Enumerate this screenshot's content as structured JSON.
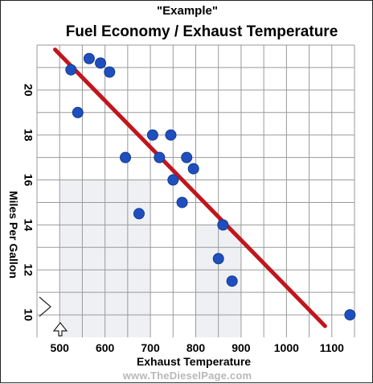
{
  "subtitle": "\"Example\"",
  "title": "Fuel Economy / Exhaust Temperature",
  "watermark": "www.TheDieselPage.com",
  "colors": {
    "grid": "#9a9a9a",
    "shade": "#eef0f4",
    "point": "#1f4fbf",
    "point_edge": "#153a8f",
    "trend": "#c0161c"
  },
  "chart_data": {
    "type": "scatter",
    "title": "Fuel Economy / Exhaust Temperature",
    "xlabel": "Exhaust Temperature",
    "ylabel": "Miles Per Gallon",
    "xlim": [
      450,
      1150
    ],
    "ylim": [
      9,
      22
    ],
    "xticks": [
      500,
      600,
      700,
      800,
      900,
      1000,
      1100
    ],
    "yticks": [
      10,
      12,
      14,
      16,
      18,
      20
    ],
    "grid": true,
    "points": [
      {
        "x": 525,
        "y": 20.9
      },
      {
        "x": 540,
        "y": 19.0
      },
      {
        "x": 565,
        "y": 21.4
      },
      {
        "x": 590,
        "y": 21.2
      },
      {
        "x": 610,
        "y": 20.8
      },
      {
        "x": 645,
        "y": 17.0
      },
      {
        "x": 675,
        "y": 14.5
      },
      {
        "x": 705,
        "y": 18.0
      },
      {
        "x": 720,
        "y": 17.0
      },
      {
        "x": 745,
        "y": 18.0
      },
      {
        "x": 750,
        "y": 16.0
      },
      {
        "x": 770,
        "y": 15.0
      },
      {
        "x": 780,
        "y": 17.0
      },
      {
        "x": 795,
        "y": 16.5
      },
      {
        "x": 850,
        "y": 12.5
      },
      {
        "x": 860,
        "y": 14.0
      },
      {
        "x": 880,
        "y": 11.5
      },
      {
        "x": 1140,
        "y": 10.0
      }
    ],
    "trendline": {
      "x": [
        490,
        1085
      ],
      "y": [
        21.8,
        9.5
      ]
    }
  }
}
